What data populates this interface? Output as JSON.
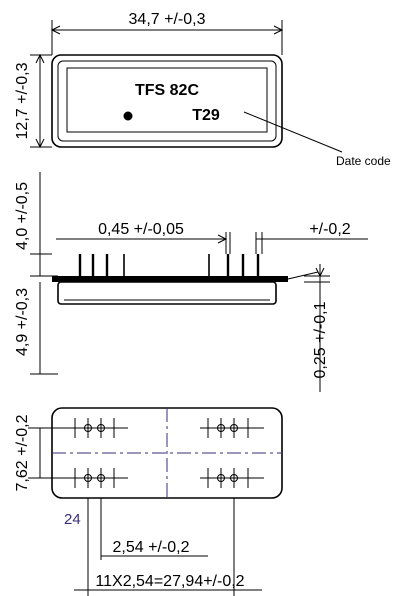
{
  "top_view": {
    "width_dim": "34,7 +/-0,3",
    "height_dim": "12,7 +/-0,3",
    "part_number": "TFS 82C",
    "date_code_value": "T29",
    "date_code_label": "Date code"
  },
  "side_view": {
    "height_dim": "4,0 +/-0,5",
    "pin_width_dim": "0,45 +/-0,05",
    "pin_offset_dim": "+/-0,2",
    "body_dim": "4,9 +/-0,3",
    "pin_thickness_dim": "0,25 +/-0,1"
  },
  "bottom_view": {
    "height_dim": "7,62 +/-0,2",
    "pin_number": "24",
    "pitch_dim": "2,54 +/-0,2",
    "span_dim": "11X2,54=27,94+/-0,2"
  }
}
